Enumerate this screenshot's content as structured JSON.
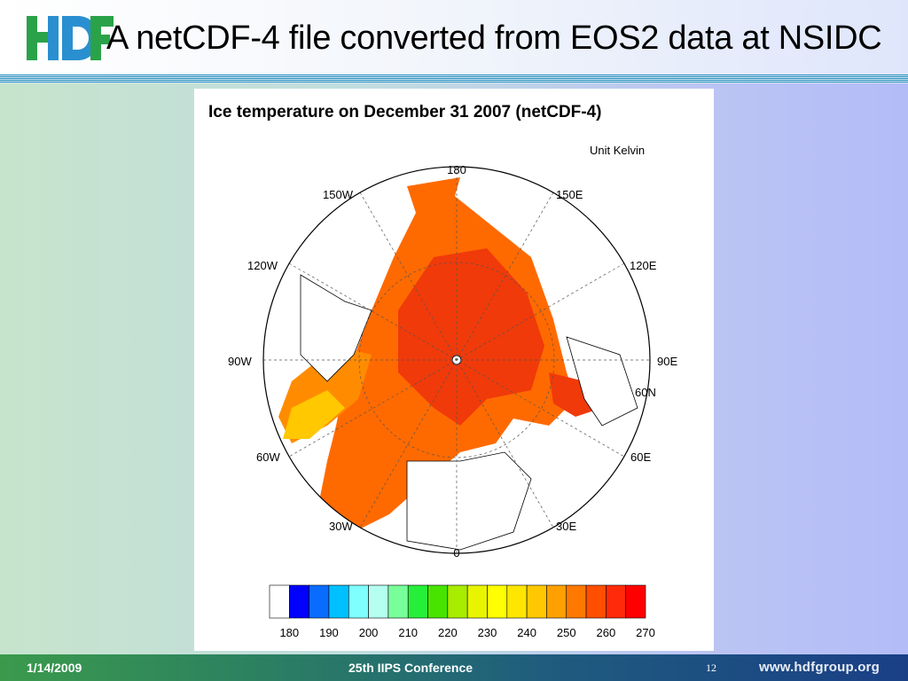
{
  "slide": {
    "title": "A netCDF-4 file converted from EOS2 data at NSIDC",
    "logo_icon": "hdf-logo-icon"
  },
  "figure": {
    "title": "Ice temperature on December 31 2007 (netCDF-4)",
    "unit_label": "Unit Kelvin",
    "longitude_labels": [
      "180",
      "150E",
      "120E",
      "90E",
      "60E",
      "30E",
      "0",
      "30W",
      "60W",
      "90W",
      "120W",
      "150W"
    ],
    "latitude_label": "60N",
    "colors": {
      "ice_warm": "#ff6a00",
      "ice_hot": "#f03a0a",
      "ice_edge": "#ffc800",
      "land": "#ffffff",
      "coastline": "#000000"
    }
  },
  "chart_data": {
    "type": "heatmap",
    "title": "Ice temperature on December 31 2007 (netCDF-4)",
    "unit": "Unit Kelvin",
    "projection": "polar-stereographic",
    "colorbar": {
      "tick_labels": [
        "180",
        "190",
        "200",
        "210",
        "220",
        "230",
        "240",
        "250",
        "260",
        "270"
      ],
      "colors": [
        "#ffffff",
        "#0000ff",
        "#0a6cff",
        "#00c0ff",
        "#80ffff",
        "#b4fff0",
        "#78ff9a",
        "#26ef3a",
        "#48e400",
        "#a8ec00",
        "#e8f400",
        "#ffff00",
        "#ffe600",
        "#ffc800",
        "#ffa000",
        "#ff7800",
        "#ff4e00",
        "#ff2a0a",
        "#ff0000"
      ]
    }
  },
  "footer": {
    "date": "1/14/2009",
    "conference": "25th IIPS Conference",
    "page_number": "12",
    "url": "www.hdfgroup.org"
  }
}
